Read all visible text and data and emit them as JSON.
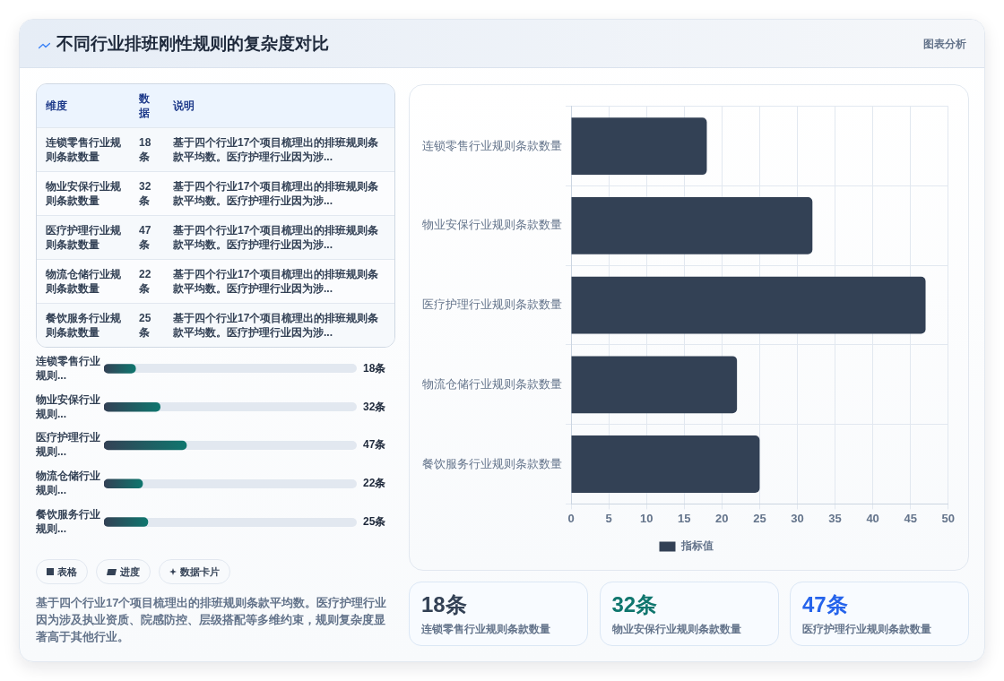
{
  "chart_data": [
    {
      "type": "bar",
      "orientation": "horizontal",
      "title": "不同行业排班刚性规则的复杂度对比",
      "categories": [
        "连锁零售行业规则条款数量",
        "物业安保行业规则条款数量",
        "医疗护理行业规则条款数量",
        "物流仓储行业规则条款数量",
        "餐饮服务行业规则条款数量"
      ],
      "series": [
        {
          "name": "指标值",
          "color": "#334155",
          "values": [
            18,
            32,
            47,
            22,
            25
          ]
        }
      ],
      "xlim": [
        0,
        50
      ],
      "xticks": [
        0,
        5,
        10,
        15,
        20,
        25,
        30,
        35,
        40,
        45,
        50
      ],
      "grid": true,
      "legend": "bottom",
      "annotations": [
        "基于四个行业17个项目梳理出的排班规则条款平均数。医疗护理行业因为涉及执业资质、院感防控、层级搭配等多维约束，规则复杂度显著高于其他行业。",
        "图表分析",
        "维度",
        "数据",
        "说明",
        "表格",
        "进度",
        "数据卡片",
        "基于四个行业17个项目梳理出的排班规则条款平均数。医疗护理行业因为涉..."
      ]
    },
    {
      "type": "bar",
      "orientation": "horizontal",
      "categories": [
        "连锁零售行业规则...",
        "物业安保行业规则...",
        "医疗护理行业规则...",
        "物流仓储行业规则...",
        "餐饮服务行业规则..."
      ],
      "series": [
        {
          "color": "#0f766e",
          "values": [
            18,
            32,
            47,
            22,
            25
          ],
          "value_labels": [
            "18条",
            "32条",
            "47条",
            "22条",
            "25条"
          ]
        }
      ]
    },
    {
      "type": "other",
      "annotations": [
        "18条",
        "连锁零售行业规则条款数量",
        "32条",
        "物业安保行业规则条款数量",
        "47条",
        "医疗护理行业规则条款数量"
      ]
    }
  ]
}
